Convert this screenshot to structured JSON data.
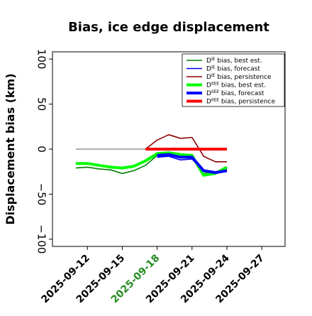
{
  "chart_data": {
    "type": "line",
    "title": "Bias, ice edge displacement",
    "xlabel": "",
    "ylabel": "Displacement bias (km)",
    "ylim": [
      -108,
      108
    ],
    "xlim": [
      "2025-09-09",
      "2025-09-29"
    ],
    "yticks": [
      100,
      50,
      0,
      -50,
      -100
    ],
    "ytick_labels": [
      "100",
      "50",
      "0",
      "−50",
      "−100"
    ],
    "xticks": [
      {
        "date": "2025-09-12",
        "label": "2025-09-12",
        "color": "#000000"
      },
      {
        "date": "2025-09-15",
        "label": "2025-09-15",
        "color": "#000000"
      },
      {
        "date": "2025-09-18",
        "label": "2025-09-18",
        "color": "#228b22"
      },
      {
        "date": "2025-09-21",
        "label": "2025-09-21",
        "color": "#000000"
      },
      {
        "date": "2025-09-24",
        "label": "2025-09-24",
        "color": "#000000"
      },
      {
        "date": "2025-09-27",
        "label": "2025-09-27",
        "color": "#000000"
      }
    ],
    "grid": false,
    "legend_position": "top-right",
    "zero_line": {
      "x": [
        "2025-09-11",
        "2025-09-17"
      ],
      "y": 0,
      "color": "#808080"
    },
    "series": [
      {
        "legend_main": "D",
        "legend_sup": "IE",
        "legend_rest": " bias, best est.",
        "color": "#008000",
        "width": 1.6,
        "x": [
          "2025-09-11",
          "2025-09-12",
          "2025-09-13",
          "2025-09-14",
          "2025-09-15",
          "2025-09-16",
          "2025-09-17",
          "2025-09-18",
          "2025-09-19",
          "2025-09-20",
          "2025-09-21",
          "2025-09-22",
          "2025-09-23",
          "2025-09-24"
        ],
        "y": [
          -21,
          -20,
          -22,
          -23,
          -27,
          -24,
          -18,
          -7,
          -6,
          -9,
          -10,
          -27,
          -26,
          -22
        ]
      },
      {
        "legend_main": "D",
        "legend_sup": "IE",
        "legend_rest": " bias, forecast",
        "color": "#0000ff",
        "width": 1.6,
        "x": [
          "2025-09-18",
          "2025-09-19",
          "2025-09-20",
          "2025-09-21",
          "2025-09-22",
          "2025-09-23",
          "2025-09-24"
        ],
        "y": [
          -9,
          -8,
          -12,
          -11,
          -24,
          -26,
          -24
        ]
      },
      {
        "legend_main": "D",
        "legend_sup": "IE",
        "legend_rest": " bias, persistence",
        "color": "#8b0000",
        "width": 1.6,
        "x": [
          "2025-09-17",
          "2025-09-18",
          "2025-09-19",
          "2025-09-20",
          "2025-09-21",
          "2025-09-22",
          "2025-09-23",
          "2025-09-24"
        ],
        "y": [
          0,
          10,
          16,
          12,
          13,
          -8,
          -14,
          -14
        ]
      },
      {
        "legend_main": "D",
        "legend_sup": "IIEE",
        "legend_rest": " bias, best est.",
        "color": "#00ff00",
        "width": 4,
        "x": [
          "2025-09-11",
          "2025-09-12",
          "2025-09-13",
          "2025-09-14",
          "2025-09-15",
          "2025-09-16",
          "2025-09-17",
          "2025-09-18",
          "2025-09-19",
          "2025-09-20",
          "2025-09-21",
          "2025-09-22",
          "2025-09-23",
          "2025-09-24"
        ],
        "y": [
          -16,
          -16,
          -18,
          -20,
          -21,
          -19,
          -13,
          -5,
          -4,
          -6,
          -7,
          -29,
          -27,
          -20
        ]
      },
      {
        "legend_main": "D",
        "legend_sup": "IIEE",
        "legend_rest": " bias, forecast",
        "color": "#0000ff",
        "width": 4,
        "x": [
          "2025-09-18",
          "2025-09-19",
          "2025-09-20",
          "2025-09-21",
          "2025-09-22",
          "2025-09-23",
          "2025-09-24"
        ],
        "y": [
          -7,
          -6,
          -9,
          -9,
          -24,
          -26,
          -24
        ]
      },
      {
        "legend_main": "D",
        "legend_sup": "IIEE",
        "legend_rest": " bias, persistence",
        "color": "#ff0000",
        "width": 4,
        "x": [
          "2025-09-17",
          "2025-09-18",
          "2025-09-19",
          "2025-09-20",
          "2025-09-21",
          "2025-09-22",
          "2025-09-23",
          "2025-09-24"
        ],
        "y": [
          0,
          0,
          0,
          0,
          0,
          0,
          0,
          0
        ]
      }
    ]
  }
}
